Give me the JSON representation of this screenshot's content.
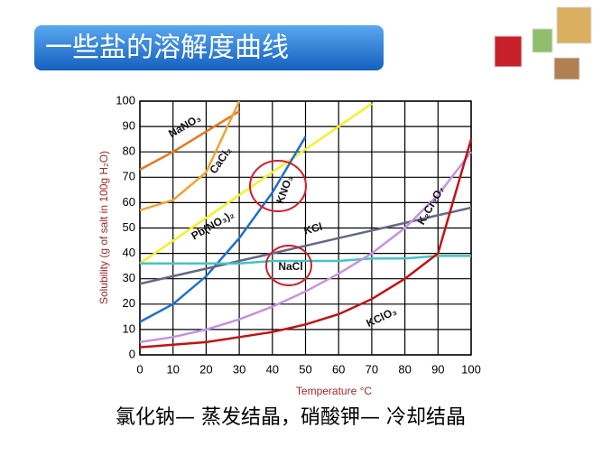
{
  "slide_title": "一些盐的溶解度曲线",
  "footer": "氯化钠— 蒸发结晶，硝酸钾— 冷却结晶",
  "chart_data": {
    "type": "line",
    "x_label": "Temperature °C",
    "y_label": "Solubility (g of salt in 100g H₂O)",
    "x": [
      0,
      10,
      20,
      30,
      40,
      50,
      60,
      70,
      80,
      90,
      100
    ],
    "xlim": [
      0,
      100
    ],
    "xticks": [
      0,
      10,
      20,
      30,
      40,
      50,
      60,
      70,
      80,
      90,
      100
    ],
    "ylim": [
      0,
      100
    ],
    "yticks": [
      0,
      10,
      20,
      30,
      40,
      50,
      60,
      70,
      80,
      90,
      100
    ],
    "grid": true,
    "series": [
      {
        "name": "NaNO₃",
        "color": "#e8771f",
        "values": [
          73,
          80,
          88,
          96,
          null,
          null,
          null,
          null,
          null,
          null,
          null
        ]
      },
      {
        "name": "CaCl₂",
        "color": "#f0a531",
        "values": [
          57,
          61,
          72,
          100,
          null,
          null,
          null,
          null,
          null,
          null,
          null
        ]
      },
      {
        "name": "Pb(NO₃)₂",
        "color": "#f2f226",
        "values": [
          36,
          45,
          54,
          63,
          72,
          81,
          90,
          99,
          null,
          null,
          null
        ]
      },
      {
        "name": "KNO₃",
        "color": "#1e6fd2",
        "values": [
          13,
          20,
          31,
          46,
          64,
          86,
          null,
          null,
          null,
          null,
          null
        ]
      },
      {
        "name": "KCl",
        "color": "#666688",
        "values": [
          28,
          31,
          34,
          37,
          40,
          43,
          46,
          49,
          52,
          55,
          58
        ]
      },
      {
        "name": "NaCl",
        "color": "#44c4c4",
        "values": [
          36,
          36,
          36,
          36,
          37,
          37,
          37,
          38,
          38,
          39,
          39
        ]
      },
      {
        "name": "K₂Cr₂O₇",
        "color": "#c493e4",
        "values": [
          5,
          7,
          10,
          14,
          19,
          25,
          32,
          40,
          50,
          63,
          80
        ]
      },
      {
        "name": "KClO₃",
        "color": "#c31212",
        "values": [
          3,
          4,
          5,
          7,
          9,
          12,
          16,
          22,
          30,
          40,
          85
        ]
      }
    ]
  }
}
